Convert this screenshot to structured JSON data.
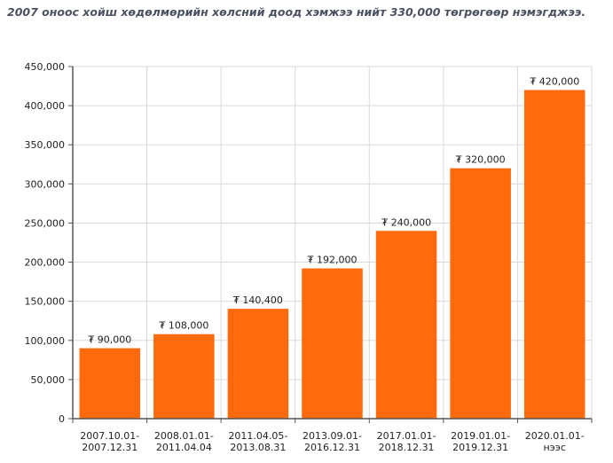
{
  "chart_data": {
    "type": "bar",
    "title": "2007 оноос хойш хөдөлмөрийн хөлсний доод хэмжээ нийт 330,000 төгрөгөөр нэмэгджээ.",
    "categories": [
      [
        "2007.10.01-",
        "2007.12.31"
      ],
      [
        "2008.01.01-",
        "2011.04.04"
      ],
      [
        "2011.04.05-",
        "2013.08.31"
      ],
      [
        "2013.09.01-",
        "2016.12.31"
      ],
      [
        "2017.01.01-",
        "2018.12.31"
      ],
      [
        "2019.01.01-",
        "2019.12.31"
      ],
      [
        "2020.01.01-",
        "нээс"
      ]
    ],
    "values": [
      90000,
      108000,
      140400,
      192000,
      240000,
      320000,
      420000
    ],
    "data_labels": [
      "₮ 90,000",
      "₮ 108,000",
      "₮ 140,400",
      "₮ 192,000",
      "₮ 240,000",
      "₮ 320,000",
      "₮ 420,000"
    ],
    "y_ticks": [
      0,
      50000,
      100000,
      150000,
      200000,
      250000,
      300000,
      350000,
      400000,
      450000
    ],
    "y_tick_labels": [
      "0",
      "50,000",
      "100,000",
      "150,000",
      "200,000",
      "250,000",
      "300,000",
      "350,000",
      "400,000",
      "450,000"
    ],
    "ylim": [
      0,
      450000
    ],
    "xlabel": "",
    "ylabel": "",
    "grid": true,
    "colors": {
      "bar": "#ff6a0d",
      "grid": "#d9d9d9",
      "axis": "#555555",
      "title": "#4a5160"
    }
  }
}
